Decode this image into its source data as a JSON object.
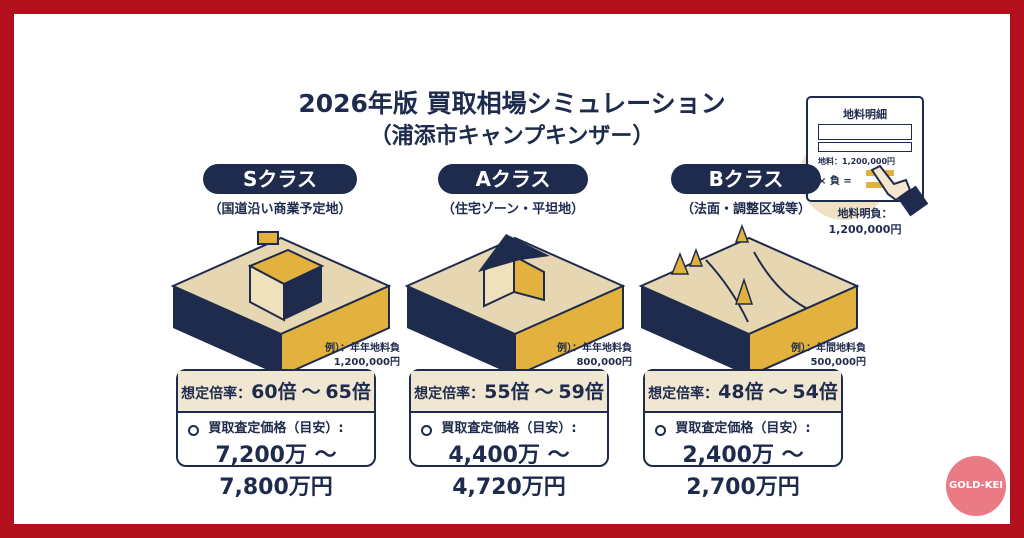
{
  "title": {
    "main": "2026年版 買取相場シミュレーション",
    "sub": "（浦添市キャンプキンザー）"
  },
  "classes": [
    {
      "name": "Sクラス",
      "desc": "（国道沿い商業予定地）",
      "example_label": "例）：年年地料負",
      "example_value": "1,200,000円",
      "rate_label": "想定倍率：",
      "rate_from": "60倍",
      "rate_sep": "〜",
      "rate_to": "65倍",
      "price_label": "買取査定価格（目安）:",
      "price": "7,200万 〜 7,800万円"
    },
    {
      "name": "Aクラス",
      "desc": "（住宅ゾーン・平坦地）",
      "example_label": "例）：年年地料負",
      "example_value": "800,000円",
      "rate_label": "想定倍率：",
      "rate_from": "55倍",
      "rate_sep": "〜",
      "rate_to": "59倍",
      "price_label": "買取査定価格（目安）:",
      "price": "4,400万 〜 4,720万円"
    },
    {
      "name": "Bクラス",
      "desc": "（法面・調整区域等）",
      "example_label": "例）：年間地料負",
      "example_value": "500,000円",
      "rate_label": "想定倍率：",
      "rate_from": "48倍",
      "rate_sep": "〜",
      "rate_to": "54倍",
      "price_label": "買取査定価格（目安）:",
      "price": "2,400万 〜 2,700万円"
    }
  ],
  "document": {
    "header": "地料明細",
    "amount_line": "地料：1,200,000円",
    "multiply": "× 負 =",
    "caption_1": "地料明負：",
    "caption_2": "1,200,000円"
  },
  "badge": "GOLD-KEI",
  "colors": {
    "frame": "#b2101d",
    "navy": "#1f2b4d",
    "sand": "#e7d6b2",
    "gold": "#e2b13e",
    "badge": "#ea7a84"
  }
}
